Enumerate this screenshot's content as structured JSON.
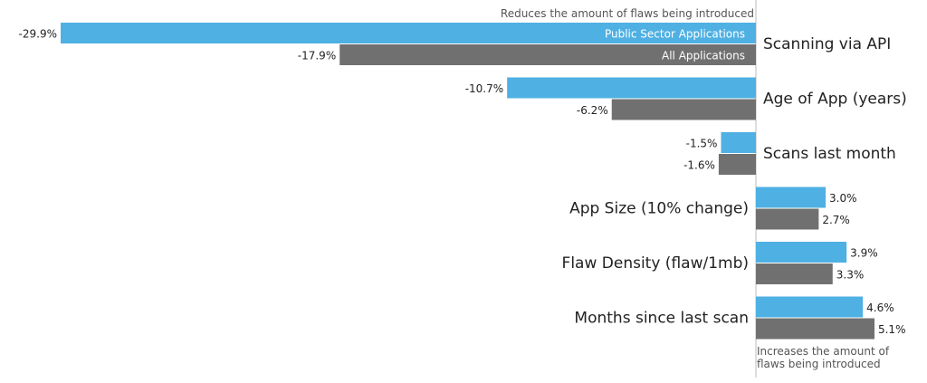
{
  "chart_data": {
    "type": "bar",
    "orientation": "horizontal",
    "categories": [
      "Scanning via API",
      "Age of App (years)",
      "Scans last month",
      "App Size (10% change)",
      "Flaw Density (flaw/1mb)",
      "Months since last scan"
    ],
    "series": [
      {
        "name": "Public Sector Applications",
        "color": "#4fb0e3",
        "values": [
          -29.9,
          -10.7,
          -1.5,
          3.0,
          3.9,
          4.6
        ],
        "labels": [
          "-29.9%",
          "-10.7%",
          "-1.5%",
          "3.0%",
          "3.9%",
          "4.6%"
        ]
      },
      {
        "name": "All Applications",
        "color": "#707070",
        "values": [
          -17.9,
          -6.2,
          -1.6,
          2.7,
          3.3,
          5.1
        ],
        "labels": [
          "-17.9%",
          "-6.2%",
          "-1.6%",
          "2.7%",
          "3.3%",
          "5.1%"
        ]
      }
    ],
    "annotations": {
      "negative_side": "Reduces the amount of flaws being introduced",
      "positive_side": [
        "Increases the amount of",
        "flaws being introduced"
      ]
    },
    "xlim": [
      -30,
      6
    ],
    "grid": false,
    "legend": "inside-bars"
  }
}
